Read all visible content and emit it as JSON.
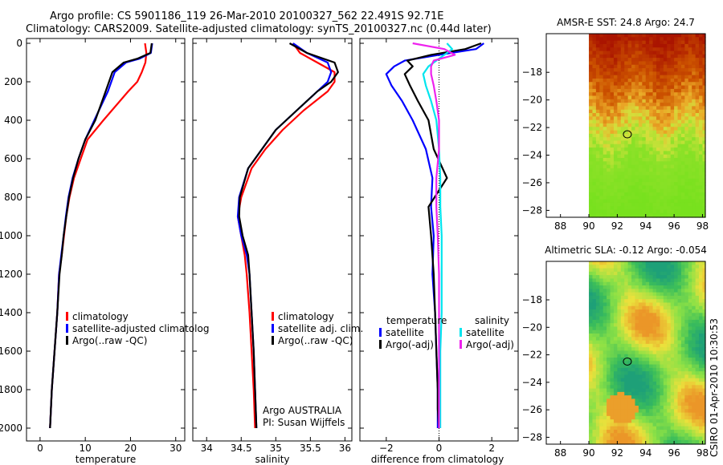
{
  "title": {
    "line1": "Argo profile: CS 5901186_119 26-Mar-2010 20100327_562 22.491S 92.71E",
    "line2": "Climatology: CARS2009. Satellite-adjusted climatology: synTS_20100327.nc (0.44d later)"
  },
  "colors": {
    "climatology": "#ff0000",
    "satellite": "#0000ff",
    "argo": "#000000",
    "sal_satellite": "#00e5ee",
    "sal_argo": "#ee22ee"
  },
  "chart_data": [
    {
      "type": "line",
      "id": "temperature",
      "xlabel": "temperature",
      "ylabel": "",
      "xlim": [
        -3,
        32
      ],
      "ylim": [
        2050,
        0
      ],
      "xticks": [
        0,
        10,
        20,
        30
      ],
      "yticks": [
        0,
        200,
        400,
        600,
        800,
        1000,
        1200,
        1400,
        1600,
        1800,
        2000
      ],
      "legend": {
        "placement": "lower-center",
        "entries": [
          "climatology",
          "satellite-adjusted climatolog",
          "Argo(..raw -QC)"
        ]
      },
      "series": [
        {
          "name": "climatology",
          "color": "#ff0000",
          "x": [
            23.2,
            23.5,
            23.3,
            22.5,
            21.5,
            19.5,
            14,
            10.5,
            9,
            7.5,
            6.5,
            5.8,
            5.3,
            4.8,
            4.2,
            3.8,
            3.2,
            2.6,
            2.2
          ],
          "y": [
            0,
            50,
            100,
            150,
            200,
            250,
            400,
            500,
            600,
            700,
            800,
            900,
            1000,
            1100,
            1200,
            1400,
            1600,
            1800,
            2000
          ]
        },
        {
          "name": "satellite-adjusted climatolog",
          "color": "#0000ff",
          "x": [
            24.8,
            24.5,
            22,
            19,
            16.5,
            15,
            12,
            10,
            8.5,
            7.2,
            6.3,
            5.7,
            5.2,
            4.7,
            4.2,
            3.8,
            3.2,
            2.6,
            2.2
          ],
          "y": [
            0,
            50,
            80,
            100,
            150,
            250,
            400,
            500,
            600,
            700,
            800,
            900,
            1000,
            1100,
            1200,
            1400,
            1600,
            1800,
            2000
          ]
        },
        {
          "name": "Argo(..raw -QC)",
          "color": "#000000",
          "x": [
            24.7,
            24.4,
            21.5,
            18.5,
            16,
            14.5,
            12.2,
            10,
            8.5,
            7.3,
            6.4,
            5.8,
            5.2,
            4.8,
            4.3,
            3.8,
            3.2,
            2.6,
            2.2
          ],
          "y": [
            0,
            50,
            80,
            100,
            150,
            250,
            400,
            500,
            600,
            700,
            800,
            900,
            1000,
            1100,
            1200,
            1400,
            1600,
            1800,
            2000
          ]
        }
      ]
    },
    {
      "type": "line",
      "id": "salinity",
      "xlabel": "salinity",
      "ylabel": "",
      "xlim": [
        33.8,
        36.1
      ],
      "ylim": [
        2050,
        0
      ],
      "xticks": [
        34,
        34.5,
        35,
        35.5,
        36
      ],
      "xtick_labels": [
        "34",
        "34.5",
        "35",
        "35.5",
        "36"
      ],
      "legend": {
        "placement": "lower-center",
        "entries": [
          "climatology",
          "satellite adj. clim.",
          "Argo(..raw -QC)"
        ]
      },
      "annotations": [
        "Argo AUSTRALIA",
        "PI: Susan Wijffels"
      ],
      "series": [
        {
          "name": "climatology",
          "color": "#ff0000",
          "x": [
            35.25,
            35.35,
            35.6,
            35.85,
            35.85,
            35.75,
            35.4,
            35.1,
            34.85,
            34.65,
            34.5,
            34.45,
            34.5,
            34.55,
            34.58,
            34.62,
            34.65,
            34.68,
            34.7
          ],
          "y": [
            0,
            50,
            100,
            150,
            200,
            250,
            350,
            450,
            550,
            650,
            800,
            900,
            1000,
            1100,
            1200,
            1400,
            1600,
            1800,
            2000
          ]
        },
        {
          "name": "satellite adj. clim.",
          "color": "#0000ff",
          "x": [
            35.25,
            35.45,
            35.75,
            35.8,
            35.75,
            35.6,
            35.3,
            35.0,
            34.8,
            34.6,
            34.47,
            34.45,
            34.5,
            34.58,
            34.62,
            34.65,
            34.68,
            34.7,
            34.72
          ],
          "y": [
            0,
            50,
            100,
            150,
            200,
            250,
            350,
            450,
            550,
            650,
            800,
            900,
            1000,
            1100,
            1200,
            1400,
            1600,
            1800,
            2000
          ]
        },
        {
          "name": "Argo(..raw -QC)",
          "color": "#000000",
          "x": [
            35.2,
            35.45,
            35.85,
            35.9,
            35.8,
            35.6,
            35.3,
            35.0,
            34.8,
            34.6,
            34.48,
            34.47,
            34.52,
            34.6,
            34.62,
            34.65,
            34.68,
            34.7,
            34.72
          ],
          "y": [
            0,
            50,
            100,
            150,
            200,
            250,
            350,
            450,
            550,
            650,
            800,
            900,
            1000,
            1100,
            1200,
            1400,
            1600,
            1800,
            2000
          ]
        }
      ]
    },
    {
      "type": "line",
      "id": "difference",
      "xlabel": "difference from climatology",
      "ylabel": "",
      "xlim": [
        -3,
        3
      ],
      "ylim": [
        2050,
        0
      ],
      "xticks": [
        -2,
        0,
        2
      ],
      "xtick_labels": [
        "−2",
        "0",
        "2"
      ],
      "zero_line": "dotted",
      "legend": {
        "placement": "lower-center",
        "headers": [
          "temperature",
          "salinity"
        ],
        "entries": [
          "satellite",
          "Argo(-adj)",
          "satellite",
          "Argo(-adj)"
        ]
      },
      "series": [
        {
          "name": "satellite",
          "group": "temperature",
          "color": "#0000ff",
          "x": [
            1.7,
            1.4,
            0.0,
            -1.3,
            -1.7,
            -2.0,
            -1.8,
            -1.4,
            -1.0,
            -0.5,
            -0.25,
            -0.3,
            -0.2,
            -0.25,
            -0.15,
            -0.1,
            -0.05,
            -0.05,
            -0.05
          ],
          "y": [
            0,
            30,
            60,
            90,
            120,
            160,
            220,
            300,
            400,
            550,
            700,
            850,
            1000,
            1200,
            1400,
            1600,
            1800,
            1900,
            2000
          ]
        },
        {
          "name": "Argo(-adj)",
          "group": "temperature",
          "color": "#000000",
          "x": [
            1.6,
            1.0,
            -0.3,
            -1.2,
            -1.0,
            -1.3,
            -1.1,
            -0.8,
            -0.4,
            -0.2,
            0.3,
            -0.4,
            -0.3,
            -0.2,
            -0.15,
            -0.1,
            -0.05,
            -0.05,
            0.0
          ],
          "y": [
            0,
            30,
            60,
            90,
            120,
            160,
            220,
            300,
            400,
            550,
            700,
            850,
            1000,
            1200,
            1400,
            1600,
            1800,
            1900,
            2000
          ]
        },
        {
          "name": "satellite",
          "group": "salinity",
          "color": "#00e5ee",
          "x": [
            0.3,
            0.5,
            0.2,
            -0.1,
            -0.4,
            -0.6,
            -0.5,
            -0.3,
            -0.1,
            0.0,
            0.05,
            0.05,
            0.1,
            0.1,
            0.1,
            0.05,
            0.05,
            0.05,
            0.05
          ],
          "y": [
            0,
            30,
            60,
            90,
            120,
            160,
            220,
            300,
            400,
            550,
            700,
            850,
            1000,
            1200,
            1400,
            1600,
            1800,
            1900,
            2000
          ]
        },
        {
          "name": "Argo(-adj)",
          "group": "salinity",
          "color": "#ee22ee",
          "x": [
            -1.0,
            0.2,
            0.6,
            -0.2,
            -0.3,
            -0.3,
            -0.2,
            -0.1,
            0.0,
            0.0,
            -0.1,
            -0.1,
            -0.05,
            0.0,
            0.0,
            0.0,
            0.0,
            0.0,
            0.0
          ],
          "y": [
            0,
            30,
            60,
            90,
            120,
            160,
            220,
            300,
            400,
            550,
            700,
            850,
            1000,
            1200,
            1400,
            1600,
            1800,
            1900,
            2000
          ]
        }
      ]
    },
    {
      "type": "heatmap",
      "id": "sst_map",
      "title": "AMSR-E SST: 24.8 Argo: 24.7",
      "xlim": [
        87,
        98.2
      ],
      "ylim": [
        -28.5,
        -15.2
      ],
      "xticks": [
        88,
        90,
        92,
        94,
        96,
        98
      ],
      "yticks": [
        -18,
        -20,
        -22,
        -24,
        -26,
        -28
      ],
      "data_x_start": 90,
      "marker": {
        "lon": 92.71,
        "lat": -22.491
      }
    },
    {
      "type": "heatmap",
      "id": "sla_map",
      "title": "Altimetric SLA: -0.12 Argo: -0.054",
      "xlim": [
        87,
        98.2
      ],
      "ylim": [
        -28.5,
        -15.2
      ],
      "xticks": [
        88,
        90,
        92,
        94,
        96,
        98
      ],
      "yticks": [
        -18,
        -20,
        -22,
        -24,
        -26,
        -28
      ],
      "data_x_start": 90,
      "marker": {
        "lon": 92.71,
        "lat": -22.491
      }
    }
  ],
  "side_label": "CSIRO 01-Apr-2010 10:30:53"
}
